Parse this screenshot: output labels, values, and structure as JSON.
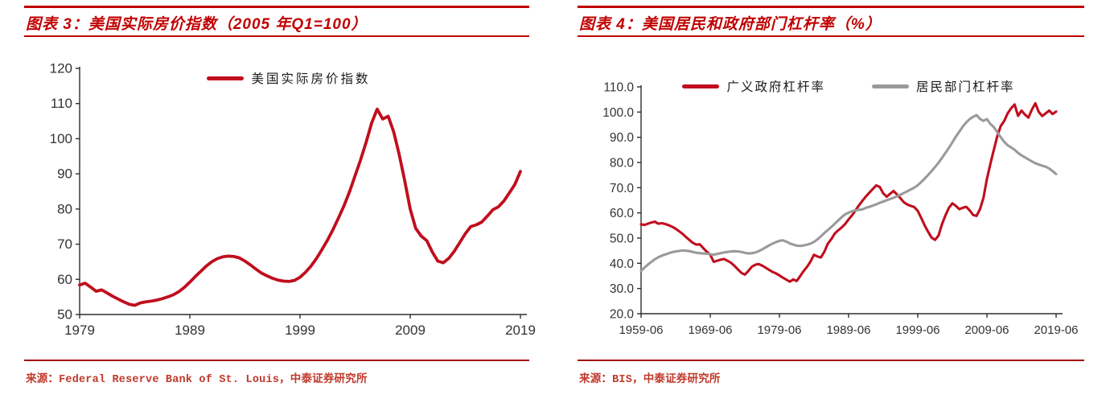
{
  "colors": {
    "accent_red": "#C00000",
    "footer_rule_red": "#A50000",
    "line_red": "#C00E1E",
    "line_gray": "#9A9A9A",
    "source_text_red": "#C0392B",
    "axis": "#2E2E2E",
    "tick_text": "#333333",
    "legend_text": "#1A1A1A"
  },
  "chart_data": [
    {
      "type": "line",
      "title": "图表 3：美国实际房价指数（2005 年Q1=100）",
      "source": "来源：Federal Reserve Bank of St. Louis，中泰证券研究所",
      "xlabel": "",
      "ylabel": "",
      "xlim": [
        1979,
        2019
      ],
      "ylim": [
        50,
        120
      ],
      "grid": false,
      "legend_position": "top-center",
      "x_ticks": [
        {
          "v": 1979,
          "label": "1979"
        },
        {
          "v": 1989,
          "label": "1989"
        },
        {
          "v": 1999,
          "label": "1999"
        },
        {
          "v": 2009,
          "label": "2009"
        },
        {
          "v": 2019,
          "label": "2019"
        }
      ],
      "y_ticks": [
        {
          "v": 50,
          "label": "50"
        },
        {
          "v": 60,
          "label": "60"
        },
        {
          "v": 70,
          "label": "70"
        },
        {
          "v": 80,
          "label": "80"
        },
        {
          "v": 90,
          "label": "90"
        },
        {
          "v": 100,
          "label": "100"
        },
        {
          "v": 110,
          "label": "110"
        },
        {
          "v": 120,
          "label": "120"
        }
      ],
      "x_start": 1979,
      "x_step": 0.5,
      "series": [
        {
          "name": "美国实际房价指数",
          "color": "#C00E1E",
          "values": [
            58.4,
            58.9,
            57.8,
            56.6,
            57.0,
            56.1,
            55.2,
            54.4,
            53.6,
            52.9,
            52.6,
            53.3,
            53.6,
            53.8,
            54.1,
            54.5,
            55.0,
            55.6,
            56.5,
            57.7,
            59.2,
            60.8,
            62.3,
            63.8,
            65.0,
            65.9,
            66.4,
            66.6,
            66.5,
            66.1,
            65.2,
            64.1,
            62.9,
            61.8,
            61.0,
            60.3,
            59.8,
            59.5,
            59.4,
            59.7,
            60.6,
            62.0,
            63.8,
            66.0,
            68.5,
            71.2,
            74.2,
            77.5,
            81.0,
            85.0,
            89.5,
            94.0,
            99.0,
            104.5,
            108.4,
            105.6,
            106.4,
            102.0,
            95.5,
            88.0,
            80.0,
            74.5,
            72.3,
            71.0,
            67.8,
            65.2,
            64.7,
            66.0,
            68.0,
            70.5,
            73.0,
            75.0,
            75.5,
            76.3,
            78.0,
            79.8,
            80.6,
            82.3,
            84.6,
            87.0,
            90.7
          ]
        }
      ]
    },
    {
      "type": "line",
      "title": "图表 4：美国居民和政府部门杠杆率（%）",
      "source": "来源：BIS，中泰证券研究所",
      "xlabel": "",
      "ylabel": "",
      "xlim": [
        1959.5,
        2019.5
      ],
      "ylim": [
        20,
        110
      ],
      "grid": false,
      "legend_position": "top-center",
      "x_ticks": [
        {
          "v": 1959.5,
          "label": "1959-06"
        },
        {
          "v": 1969.5,
          "label": "1969-06"
        },
        {
          "v": 1979.5,
          "label": "1979-06"
        },
        {
          "v": 1989.5,
          "label": "1989-06"
        },
        {
          "v": 1999.5,
          "label": "1999-06"
        },
        {
          "v": 2009.5,
          "label": "2009-06"
        },
        {
          "v": 2019.5,
          "label": "2019-06"
        }
      ],
      "y_ticks": [
        {
          "v": 20,
          "label": "20.0"
        },
        {
          "v": 30,
          "label": "30.0"
        },
        {
          "v": 40,
          "label": "40.0"
        },
        {
          "v": 50,
          "label": "50.0"
        },
        {
          "v": 60,
          "label": "60.0"
        },
        {
          "v": 70,
          "label": "70.0"
        },
        {
          "v": 80,
          "label": "80.0"
        },
        {
          "v": 90,
          "label": "90.0"
        },
        {
          "v": 100,
          "label": "100.0"
        },
        {
          "v": 110,
          "label": "110.0"
        }
      ],
      "x_start": 1959.5,
      "x_step": 0.5,
      "series": [
        {
          "name": "广义政府杠杆率",
          "color": "#C00E1E",
          "values": [
            55.5,
            55.2,
            55.7,
            56.2,
            56.5,
            55.7,
            55.9,
            55.6,
            55.1,
            54.5,
            53.7,
            52.7,
            51.7,
            50.4,
            49.2,
            48.1,
            47.4,
            47.5,
            46.0,
            44.6,
            43.4,
            40.6,
            41.0,
            41.4,
            41.7,
            41.0,
            40.2,
            39.0,
            37.6,
            36.2,
            35.5,
            36.9,
            38.6,
            39.4,
            39.7,
            39.1,
            38.3,
            37.4,
            36.6,
            36.0,
            35.2,
            34.3,
            33.5,
            32.7,
            33.6,
            33.0,
            34.9,
            36.9,
            38.6,
            40.7,
            43.4,
            42.7,
            42.3,
            44.6,
            47.8,
            49.6,
            51.8,
            53.1,
            54.2,
            55.6,
            57.4,
            59.0,
            61.0,
            63.0,
            64.8,
            66.5,
            68.0,
            69.5,
            70.9,
            70.3,
            67.8,
            66.4,
            67.6,
            68.7,
            67.3,
            65.8,
            64.2,
            63.3,
            62.8,
            62.3,
            60.8,
            58.0,
            55.0,
            52.5,
            50.2,
            49.3,
            51.0,
            55.5,
            59.0,
            62.0,
            63.8,
            62.8,
            61.5,
            62.0,
            62.4,
            61.0,
            59.2,
            58.8,
            61.5,
            66.0,
            73.5,
            79.5,
            85.0,
            90.5,
            94.5,
            96.5,
            99.5,
            101.5,
            103.0,
            98.5,
            100.6,
            99.0,
            97.8,
            101.0,
            103.5,
            100.0,
            98.4,
            99.5,
            100.6,
            99.2,
            100.2
          ]
        },
        {
          "name": "居民部门杠杆率",
          "color": "#9A9A9A",
          "values": [
            37.0,
            38.3,
            39.5,
            40.6,
            41.6,
            42.4,
            43.0,
            43.5,
            44.0,
            44.4,
            44.7,
            44.9,
            45.1,
            45.0,
            44.8,
            44.5,
            44.2,
            44.0,
            43.9,
            43.8,
            43.6,
            43.4,
            43.7,
            44.0,
            44.3,
            44.5,
            44.7,
            44.8,
            44.7,
            44.5,
            44.2,
            43.9,
            44.0,
            44.3,
            44.8,
            45.5,
            46.3,
            47.1,
            47.8,
            48.4,
            48.9,
            49.1,
            48.6,
            47.9,
            47.4,
            47.0,
            46.9,
            47.1,
            47.4,
            47.8,
            48.5,
            49.5,
            50.7,
            52.0,
            53.2,
            54.4,
            55.7,
            57.0,
            58.3,
            59.4,
            60.1,
            60.7,
            61.0,
            61.2,
            61.4,
            62.0,
            62.4,
            62.9,
            63.4,
            64.0,
            64.5,
            65.0,
            65.5,
            66.0,
            66.6,
            67.2,
            67.9,
            68.6,
            69.3,
            70.0,
            71.0,
            72.2,
            73.6,
            75.1,
            76.6,
            78.2,
            79.9,
            81.8,
            83.8,
            85.8,
            88.0,
            90.2,
            92.2,
            94.2,
            95.9,
            97.2,
            98.1,
            98.8,
            97.3,
            96.5,
            97.2,
            95.3,
            94.0,
            92.0,
            90.0,
            88.2,
            86.8,
            86.0,
            85.0,
            83.8,
            82.8,
            82.0,
            81.2,
            80.4,
            79.7,
            79.2,
            78.7,
            78.3,
            77.6,
            76.6,
            75.4
          ]
        }
      ]
    }
  ]
}
